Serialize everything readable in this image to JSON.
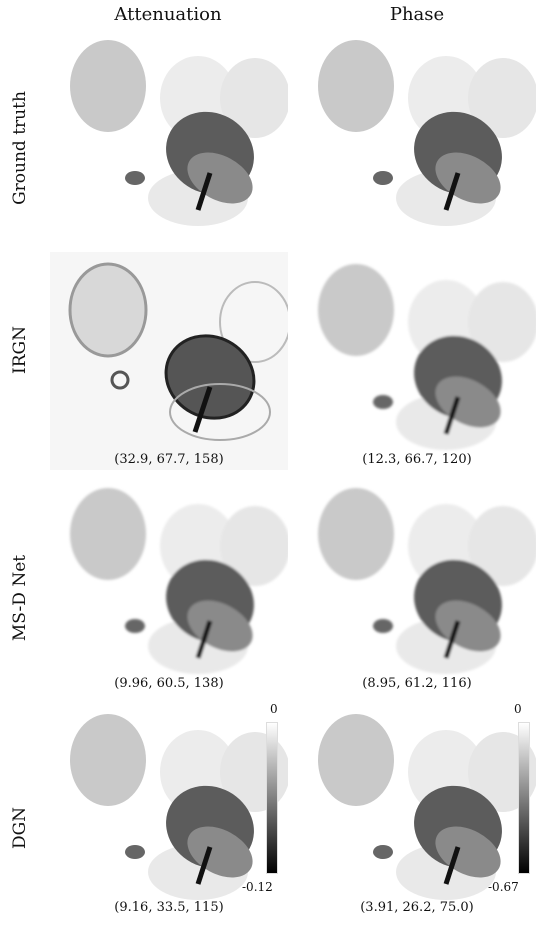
{
  "columns": {
    "attenuation": "Attenuation",
    "phase": "Phase"
  },
  "rows": {
    "ground_truth": "Ground truth",
    "irgn": "IRGN",
    "msd": "MS-D Net",
    "dgn": "DGN"
  },
  "metrics": {
    "irgn_att": "(32.9, 67.7, 158)",
    "irgn_phase": "(12.3, 66.7, 120)",
    "msd_att": "(9.96, 60.5, 138)",
    "msd_phase": "(8.95, 61.2, 116)",
    "dgn_att": "(9.16, 33.5, 115)",
    "dgn_phase": "(3.91, 26.2, 75.0)"
  },
  "colorbars": {
    "attenuation": {
      "max": "0",
      "min": "-0.12"
    },
    "phase": {
      "max": "0",
      "min": "-0.67"
    }
  }
}
